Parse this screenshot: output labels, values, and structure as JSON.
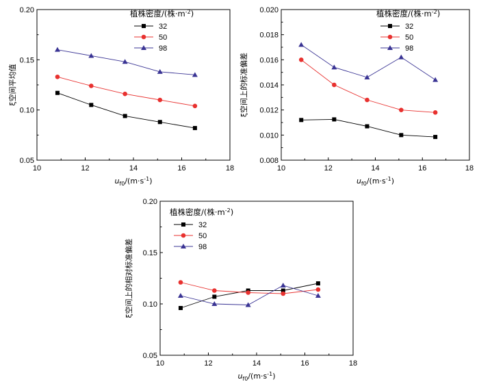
{
  "chart_data": [
    {
      "type": "line",
      "title": "",
      "xlabel": "u_f0/(m·s⁻¹)",
      "xlabel_main": "u",
      "xlabel_sub": "f0",
      "xlabel_rest": "/(m·s",
      "xlabel_sup": "-1",
      "xlabel_close": ")",
      "ylabel": "ξ空间平均值",
      "xlim": [
        10,
        18
      ],
      "ylim": [
        0.05,
        0.2
      ],
      "xticks": [
        10,
        12,
        14,
        16,
        18
      ],
      "yticks": [
        0.05,
        0.1,
        0.15,
        0.2
      ],
      "ytick_labels": [
        "0.05",
        "0.10",
        "0.15",
        "0.20"
      ],
      "xtick_labels": [
        "10",
        "12",
        "14",
        "16",
        "18"
      ],
      "legend": {
        "title": "植株密度/(株·m",
        "title_sup": "-2",
        "title_close": ")",
        "position": "top-right"
      },
      "x": [
        10.85,
        12.25,
        13.65,
        15.1,
        16.55
      ],
      "series": [
        {
          "name": "32",
          "values": [
            0.117,
            0.105,
            0.094,
            0.088,
            0.082
          ]
        },
        {
          "name": "50",
          "values": [
            0.133,
            0.124,
            0.116,
            0.11,
            0.104
          ]
        },
        {
          "name": "98",
          "values": [
            0.16,
            0.154,
            0.148,
            0.138,
            0.135
          ]
        }
      ]
    },
    {
      "type": "line",
      "title": "",
      "xlabel": "u_f0/(m·s⁻¹)",
      "xlabel_main": "u",
      "xlabel_sub": "f0",
      "xlabel_rest": "/(m·s",
      "xlabel_sup": "-1",
      "xlabel_close": ")",
      "ylabel": "ξ空间上的标准偏差",
      "xlim": [
        10,
        18
      ],
      "ylim": [
        0.008,
        0.02
      ],
      "xticks": [
        10,
        12,
        14,
        16,
        18
      ],
      "yticks": [
        0.008,
        0.01,
        0.012,
        0.014,
        0.016,
        0.018,
        0.02
      ],
      "ytick_labels": [
        "0.008",
        "0.010",
        "0.012",
        "0.014",
        "0.016",
        "0.018",
        "0.020"
      ],
      "xtick_labels": [
        "10",
        "12",
        "14",
        "16",
        "18"
      ],
      "legend": {
        "title": "植株密度/(株·m",
        "title_sup": "-2",
        "title_close": ")",
        "position": "top-right"
      },
      "x": [
        10.85,
        12.25,
        13.65,
        15.1,
        16.55
      ],
      "series": [
        {
          "name": "32",
          "values": [
            0.0112,
            0.01125,
            0.0107,
            0.01,
            0.00985
          ]
        },
        {
          "name": "50",
          "values": [
            0.016,
            0.014,
            0.0128,
            0.012,
            0.0118
          ]
        },
        {
          "name": "98",
          "values": [
            0.0172,
            0.0154,
            0.0146,
            0.0162,
            0.0144
          ]
        }
      ]
    },
    {
      "type": "line",
      "title": "",
      "xlabel": "u_f0/(m·s⁻¹)",
      "xlabel_main": "u",
      "xlabel_sub": "f0",
      "xlabel_rest": "/(m·s",
      "xlabel_sup": "-1",
      "xlabel_close": ")",
      "ylabel": "ξ空间上的相对标准偏差",
      "xlim": [
        10,
        18
      ],
      "ylim": [
        0.05,
        0.2
      ],
      "xticks": [
        10,
        12,
        14,
        16,
        18
      ],
      "yticks": [
        0.05,
        0.1,
        0.15,
        0.2
      ],
      "ytick_labels": [
        "0.05",
        "0.10",
        "0.15",
        "0.20"
      ],
      "xtick_labels": [
        "10",
        "12",
        "14",
        "16",
        "18"
      ],
      "legend": {
        "title": "植株密度/(株·m",
        "title_sup": "-2",
        "title_close": ")",
        "position": "top-left"
      },
      "x": [
        10.85,
        12.25,
        13.65,
        15.1,
        16.55
      ],
      "series": [
        {
          "name": "32",
          "values": [
            0.096,
            0.107,
            0.113,
            0.113,
            0.12
          ]
        },
        {
          "name": "50",
          "values": [
            0.121,
            0.113,
            0.111,
            0.11,
            0.114
          ]
        },
        {
          "name": "98",
          "values": [
            0.108,
            0.1,
            0.099,
            0.118,
            0.108
          ]
        }
      ]
    }
  ],
  "series_style": [
    {
      "marker": "square",
      "color": "#000000"
    },
    {
      "marker": "circle",
      "color": "#e8312f"
    },
    {
      "marker": "triangle",
      "color": "#3a3494"
    }
  ]
}
